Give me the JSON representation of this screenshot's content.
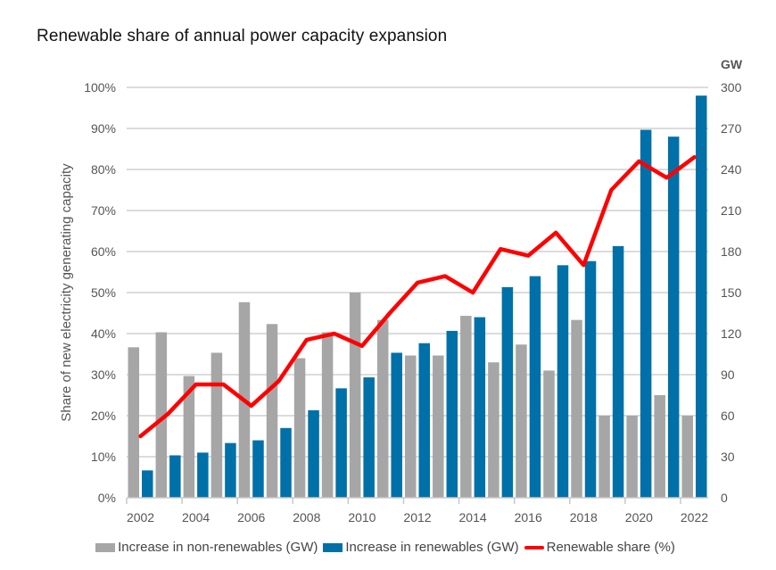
{
  "chart_data": {
    "type": "bar",
    "title": "Renewable share of annual power capacity expansion",
    "xlabel": "",
    "ylabel": "Share of new electricity generating capacity",
    "y2label": "GW",
    "ylim": [
      0,
      100
    ],
    "y2lim": [
      0,
      300
    ],
    "yticks": [
      "0%",
      "10%",
      "20%",
      "30%",
      "40%",
      "50%",
      "60%",
      "70%",
      "80%",
      "90%",
      "100%"
    ],
    "y2ticks": [
      "0",
      "30",
      "60",
      "90",
      "120",
      "150",
      "180",
      "210",
      "240",
      "270",
      "300"
    ],
    "categories": [
      2002,
      2003,
      2004,
      2005,
      2006,
      2007,
      2008,
      2009,
      2010,
      2011,
      2012,
      2013,
      2014,
      2015,
      2016,
      2017,
      2018,
      2019,
      2020,
      2021,
      2022
    ],
    "xtick_labels": [
      "2002",
      "2004",
      "2006",
      "2008",
      "2010",
      "2012",
      "2014",
      "2016",
      "2018",
      "2020",
      "2022"
    ],
    "grid": true,
    "legend_position": "bottom",
    "series": [
      {
        "name": "Increase in non-renewables (GW)",
        "type": "bar",
        "axis": "right",
        "color": "#a6a6a6",
        "values": [
          110,
          121,
          89,
          106,
          143,
          127,
          102,
          121,
          150,
          130,
          104,
          104,
          133,
          99,
          112,
          93,
          130,
          60,
          60,
          75,
          60
        ]
      },
      {
        "name": "Increase in renewables (GW)",
        "type": "bar",
        "axis": "right",
        "color": "#0070a8",
        "values": [
          20,
          31,
          33,
          40,
          42,
          51,
          64,
          80,
          88,
          106,
          113,
          122,
          132,
          154,
          162,
          170,
          173,
          184,
          269,
          264,
          294
        ]
      },
      {
        "name": "Renewable share (%)",
        "type": "line",
        "axis": "left",
        "color": "#ff0000",
        "values": [
          15,
          20.5,
          27.6,
          27.6,
          22.4,
          28.5,
          38.5,
          40,
          37,
          45,
          52.4,
          54,
          50,
          60.6,
          59,
          64.6,
          56.7,
          75,
          82,
          78,
          83
        ]
      }
    ]
  }
}
